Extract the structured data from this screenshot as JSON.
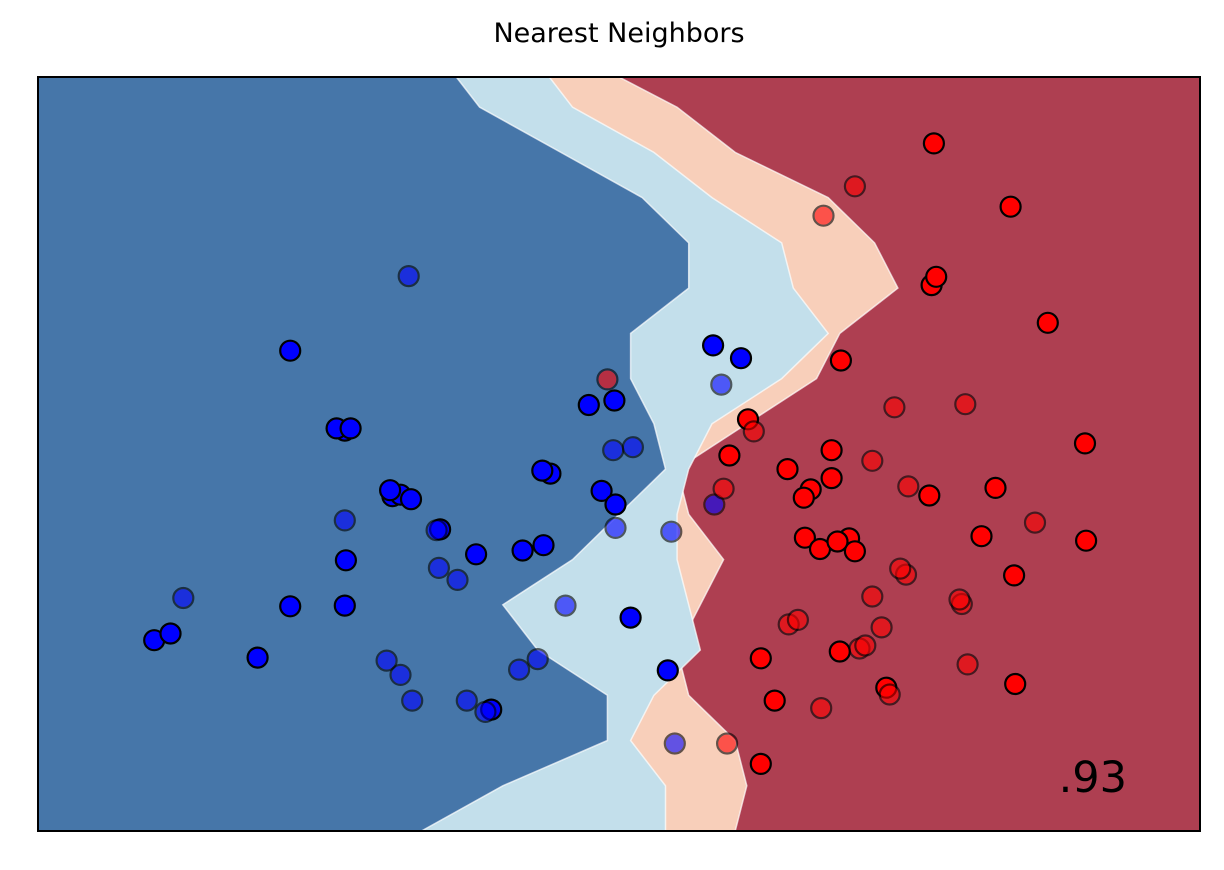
{
  "chart_data": {
    "type": "scatter",
    "title": "Nearest Neighbors",
    "xlabel": "",
    "ylabel": "",
    "xlim": [
      0,
      100
    ],
    "ylim": [
      0,
      100
    ],
    "ticks": false,
    "grid": false,
    "score_label": ".93",
    "colors": {
      "region_blue_dark": "#4676a9",
      "region_blue_light": "#c3dfeb",
      "region_red_light": "#f8cfba",
      "region_red_dark": "#ae3f51",
      "point_class0": "#0000ff",
      "point_class1": "#ff0000"
    },
    "decision_regions": {
      "boundary_y": [
        0,
        6,
        12,
        18,
        24,
        30,
        36,
        42,
        48,
        54,
        60,
        66,
        72,
        78,
        84,
        90,
        96,
        100
      ],
      "blue_dark_edge": [
        33,
        40,
        49,
        49,
        43,
        40,
        46,
        50,
        54,
        53,
        51,
        51,
        56,
        56,
        52,
        45,
        38,
        36
      ],
      "blue_light_edge": [
        54,
        54,
        51,
        53,
        57,
        56,
        55,
        55,
        56,
        58,
        64,
        68,
        65,
        64,
        58,
        53,
        46,
        44
      ],
      "red_light_edge": [
        60,
        61,
        60,
        56,
        55,
        57,
        59,
        56,
        55,
        61,
        67,
        69,
        74,
        72,
        68,
        60,
        55,
        50
      ]
    },
    "series": [
      {
        "class": 0,
        "role": "train",
        "x": [
          10.0,
          11.4,
          18.9,
          21.7,
          26.4,
          26.5,
          26.4,
          21.7,
          25.7,
          26.9,
          30.5,
          31.2,
          30.3,
          32.1,
          34.6,
          37.7,
          41.7,
          39.0,
          43.5,
          49.6,
          47.4,
          44.1,
          43.4,
          48.5,
          49.7,
          51.0,
          54.2,
          58.1,
          60.5
        ],
        "y": [
          25.3,
          26.2,
          23.0,
          29.8,
          29.9,
          35.9,
          53.1,
          63.7,
          53.4,
          53.4,
          44.4,
          44.6,
          45.2,
          44.0,
          40.0,
          36.7,
          37.2,
          16.1,
          37.9,
          57.1,
          56.5,
          47.4,
          47.8,
          45.1,
          43.3,
          28.3,
          21.3,
          64.4,
          62.7
        ]
      },
      {
        "class": 0,
        "role": "test",
        "x": [
          12.5,
          26.4,
          31.2,
          30.0,
          32.2,
          34.3,
          34.5,
          36.1,
          38.5,
          36.9,
          41.4,
          43.0,
          31.9,
          45.4,
          49.7,
          51.2,
          49.5,
          54.8,
          54.5,
          58.8,
          58.2
        ],
        "y": [
          30.9,
          41.2,
          20.7,
          22.6,
          17.3,
          39.9,
          34.9,
          33.3,
          15.8,
          17.3,
          21.4,
          22.8,
          73.6,
          29.9,
          40.2,
          50.9,
          50.5,
          11.6,
          39.7,
          59.2,
          43.3
        ]
      },
      {
        "class": 1,
        "role": "train",
        "x": [
          77.1,
          83.7,
          76.9,
          77.3,
          86.9,
          69.1,
          68.3,
          59.5,
          61.1,
          64.5,
          68.3,
          66.5,
          65.9,
          69.8,
          70.3,
          66.0,
          67.3,
          68.8,
          76.7,
          81.2,
          90.1,
          90.2,
          84.0,
          82.4,
          69.0,
          62.2,
          62.2,
          63.4,
          73.0,
          84.1
        ],
        "y": [
          91.2,
          82.8,
          72.4,
          73.5,
          67.4,
          62.4,
          46.8,
          49.8,
          54.6,
          48.0,
          50.5,
          45.3,
          44.2,
          38.8,
          37.1,
          38.9,
          37.4,
          38.4,
          44.5,
          39.1,
          51.4,
          38.5,
          33.9,
          45.5,
          23.8,
          22.9,
          8.9,
          17.3,
          19.0,
          19.5
        ]
      },
      {
        "class": 1,
        "role": "test",
        "x": [
          70.3,
          67.6,
          73.7,
          71.8,
          74.9,
          79.8,
          74.7,
          61.6,
          49.0,
          59.0,
          70.7,
          71.2,
          73.3,
          79.5,
          79.3,
          85.8,
          80.0,
          64.6,
          72.6,
          67.4,
          65.4,
          71.8,
          74.2,
          59.3
        ],
        "y": [
          85.5,
          81.6,
          56.2,
          49.1,
          45.7,
          56.6,
          34.0,
          53.0,
          59.9,
          45.4,
          24.2,
          24.6,
          18.1,
          30.1,
          30.7,
          40.9,
          22.1,
          27.4,
          27.0,
          16.3,
          28.0,
          31.1,
          34.8,
          11.6
        ]
      }
    ]
  }
}
